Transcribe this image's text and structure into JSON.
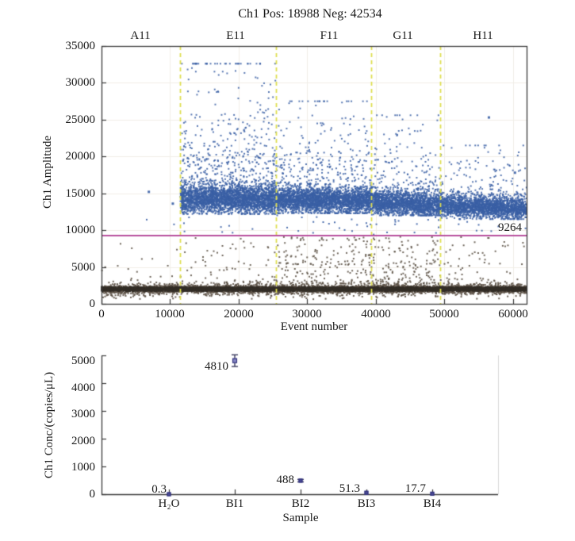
{
  "figure": {
    "background": "#ffffff"
  },
  "chart_data": [
    {
      "name": "amplitude-scatter",
      "type": "scatter",
      "title": "Ch1 Pos: 18988 Neg: 42534",
      "pos_count": 18988,
      "neg_count": 42534,
      "xlabel": "Event number",
      "ylabel": "Ch1 Amplitude",
      "xlim": [
        0,
        62000
      ],
      "ylim": [
        0,
        35000
      ],
      "grid": true,
      "xticks": [
        "0",
        "10000",
        "20000",
        "30000",
        "40000",
        "50000",
        "60000"
      ],
      "yticks": [
        "0",
        "5000",
        "10000",
        "15000",
        "20000",
        "25000",
        "30000",
        "35000"
      ],
      "threshold": {
        "value": 9264,
        "label": "9264",
        "color": "#b8509e"
      },
      "well_dividers": [
        11500,
        25400,
        39300,
        49400
      ],
      "divider_color": "#dede50",
      "wells": [
        {
          "label": "A11",
          "range": [
            0,
            11500
          ],
          "positive_core": null,
          "stray_positives": [
            [
              6900,
              15200
            ],
            [
              10400,
              13600
            ]
          ],
          "rain_count": 16,
          "subband_count": 2
        },
        {
          "label": "E11",
          "range": [
            11500,
            25400
          ],
          "positive_core": {
            "center0": 14300,
            "center1": 14200,
            "sigma": 950,
            "min": 12200,
            "tail_max": 32600,
            "tail_frac": 0.16,
            "count": 3200
          },
          "stray_positives": [],
          "rain_count": 60,
          "subband_count": 8
        },
        {
          "label": "F11",
          "range": [
            25400,
            39300
          ],
          "positive_core": {
            "center0": 14200,
            "center1": 13900,
            "sigma": 850,
            "min": 12300,
            "tail_max": 27500,
            "tail_frac": 0.12,
            "count": 3000
          },
          "stray_positives": [],
          "rain_count": 190,
          "subband_count": 18
        },
        {
          "label": "G11",
          "range": [
            39300,
            49400
          ],
          "positive_core": {
            "center0": 13800,
            "center1": 13400,
            "sigma": 800,
            "min": 12000,
            "tail_max": 25600,
            "tail_frac": 0.1,
            "count": 2000
          },
          "stray_positives": [],
          "rain_count": 140,
          "subband_count": 14
        },
        {
          "label": "H11",
          "range": [
            49400,
            62000
          ],
          "positive_core": {
            "center0": 13400,
            "center1": 12900,
            "sigma": 750,
            "min": 11500,
            "tail_max": 21500,
            "tail_frac": 0.08,
            "count": 2200
          },
          "stray_positives": [
            [
              56500,
              25300
            ],
            [
              60300,
              17800
            ]
          ],
          "rain_count": 55,
          "subband_count": 8
        }
      ],
      "negative_band": {
        "center": 2000,
        "sigma": 150,
        "fuzz_sigma": 430,
        "count": 13000,
        "low_stray_count": 25
      },
      "colors": {
        "positive": "#3a5fa5",
        "negative": "#332d27",
        "negative_fuzz": "#5e5348",
        "rain": "#60564a",
        "grid": "#f1eee7",
        "axis": "#3a3a3a"
      }
    },
    {
      "name": "concentration-plot",
      "type": "scatter",
      "xlabel": "Sample",
      "ylabel": "Ch1 Conc/(copies/μL)",
      "ylim": [
        0,
        5000
      ],
      "grid": false,
      "yticks": [
        "0",
        "1000",
        "2000",
        "3000",
        "4000",
        "5000"
      ],
      "categories": [
        "H₂O",
        "BI1",
        "BI2",
        "BI3",
        "BI4"
      ],
      "values": [
        0.3,
        4810,
        488,
        51.3,
        17.7
      ],
      "value_labels": [
        "0.3",
        "4810",
        "488",
        "51.3",
        "17.7"
      ],
      "errors": [
        15,
        210,
        45,
        12,
        8
      ],
      "colors": {
        "marker_fill": "#8585c4",
        "marker_small": "#4a4a96",
        "marker_edge": "#30307a",
        "errorbar": "#3a3a5e",
        "axis": "#3a3a3a",
        "right_spine": "#d9d9d9"
      }
    }
  ]
}
